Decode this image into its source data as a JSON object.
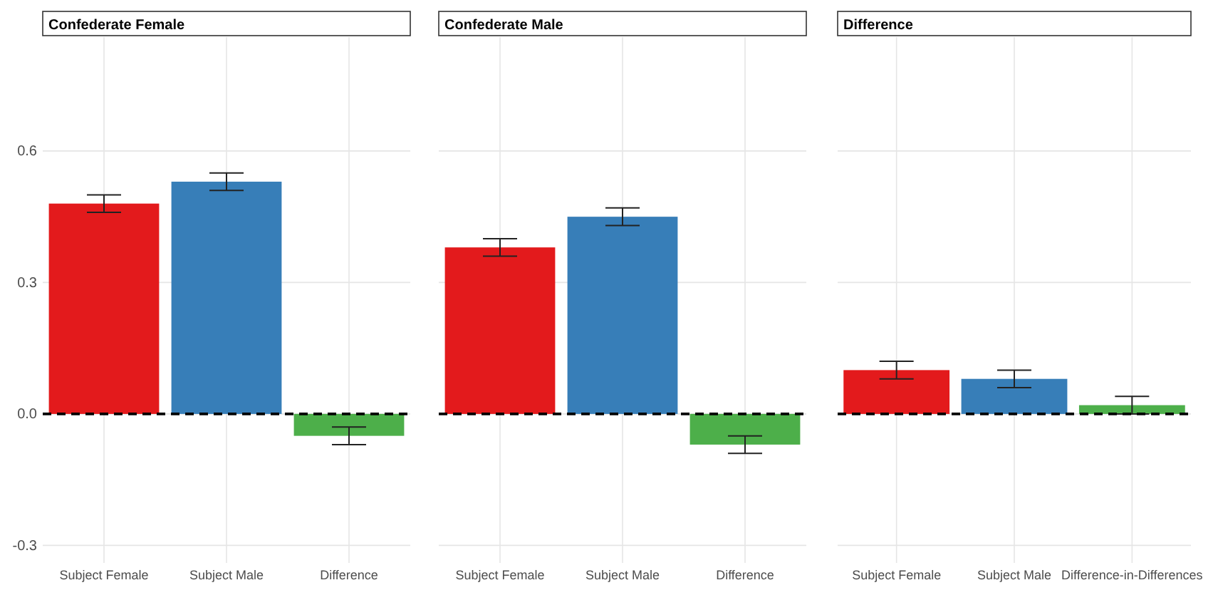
{
  "chart_data": [
    {
      "type": "bar",
      "title": "Confederate Female",
      "categories": [
        "Subject Female",
        "Subject Male",
        "Difference"
      ],
      "values": [
        0.48,
        0.53,
        -0.05
      ],
      "errors": [
        0.02,
        0.02,
        0.02
      ],
      "colors": [
        "#e31a1c",
        "#377eb8",
        "#4daf4a"
      ],
      "ylim": [
        -0.34,
        0.86
      ],
      "yticks": [
        -0.3,
        {
          "value": 0,
          "label": "0.0"
        },
        0.3,
        0.6
      ],
      "grid": true,
      "ref_lines": [
        {
          "axis": "y",
          "value": 0,
          "line_style": "dashed",
          "color": "#000000"
        }
      ]
    },
    {
      "type": "bar",
      "title": "Confederate Male",
      "categories": [
        "Subject Female",
        "Subject Male",
        "Difference"
      ],
      "values": [
        0.38,
        0.45,
        -0.07
      ],
      "errors": [
        0.02,
        0.02,
        0.02
      ],
      "colors": [
        "#e31a1c",
        "#377eb8",
        "#4daf4a"
      ],
      "ylim": [
        -0.34,
        0.86
      ],
      "yticks": [
        -0.3,
        0.0,
        0.3,
        0.6
      ],
      "grid": true,
      "tick_labels": "x",
      "ref_lines": [
        {
          "axis": "y",
          "value": 0,
          "line_style": "dashed",
          "color": "#000000"
        }
      ]
    },
    {
      "type": "bar",
      "title": "Difference",
      "categories": [
        "Subject Female",
        "Subject Male",
        "Difference-in-Differences"
      ],
      "values": [
        0.1,
        0.08,
        0.02
      ],
      "errors": [
        0.02,
        0.02,
        0.02
      ],
      "colors": [
        "#e31a1c",
        "#377eb8",
        "#4daf4a"
      ],
      "ylim": [
        -0.34,
        0.86
      ],
      "yticks": [
        -0.3,
        0.0,
        0.3,
        0.6
      ],
      "grid": true,
      "tick_labels": "x",
      "ref_lines": [
        {
          "axis": "y",
          "value": 0,
          "line_style": "dashed",
          "color": "#000000"
        }
      ]
    }
  ]
}
